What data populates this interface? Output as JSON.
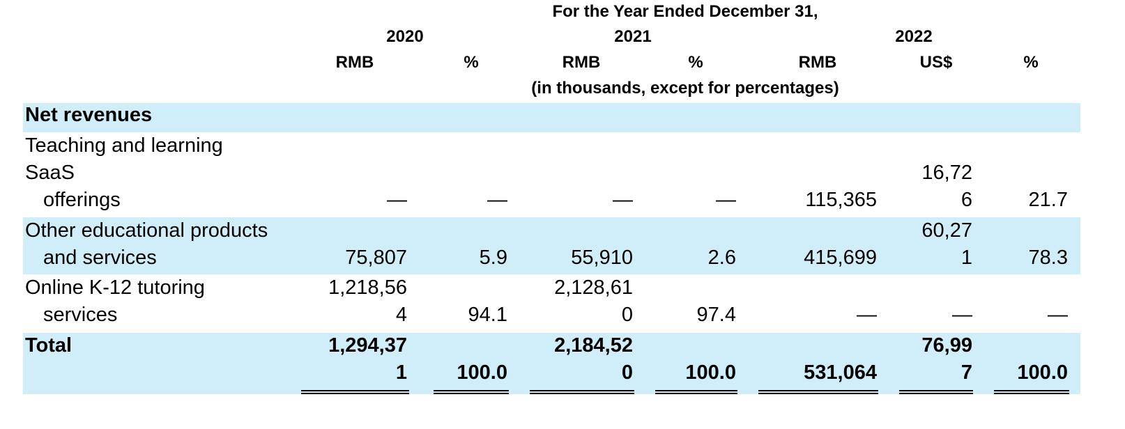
{
  "header": {
    "period": "For the Year Ended December 31,",
    "years": [
      "2020",
      "2021",
      "2022"
    ],
    "currencies": [
      "RMB",
      "%",
      "RMB",
      "%",
      "RMB",
      "US$",
      "%"
    ],
    "units_note": "(in thousands, except for percentages)"
  },
  "section_title": "Net revenues",
  "rows": [
    {
      "label": [
        "Teaching and learning",
        "SaaS",
        "offerings"
      ],
      "values": [
        [
          "",
          "—"
        ],
        [
          "",
          "—"
        ],
        [
          "",
          "—"
        ],
        [
          "",
          "—"
        ],
        [
          "",
          "115,365"
        ],
        [
          "16,72",
          "6"
        ],
        [
          "",
          "21.7"
        ]
      ]
    },
    {
      "label": [
        "Other educational products",
        "and services"
      ],
      "values": [
        [
          "",
          "75,807"
        ],
        [
          "",
          "5.9"
        ],
        [
          "",
          "55,910"
        ],
        [
          "",
          "2.6"
        ],
        [
          "",
          "415,699"
        ],
        [
          "60,27",
          "1"
        ],
        [
          "",
          "78.3"
        ]
      ]
    },
    {
      "label": [
        "Online K-12 tutoring",
        "services"
      ],
      "values": [
        [
          "1,218,56",
          "4"
        ],
        [
          "",
          "94.1"
        ],
        [
          "2,128,61",
          "0"
        ],
        [
          "",
          "97.4"
        ],
        [
          "",
          "—"
        ],
        [
          "",
          "—"
        ],
        [
          "",
          "—"
        ]
      ]
    },
    {
      "label": [
        "Total"
      ],
      "values": [
        [
          "1,294,37",
          "1"
        ],
        [
          "",
          "100.0"
        ],
        [
          "2,184,52",
          "0"
        ],
        [
          "",
          "100.0"
        ],
        [
          "",
          "531,064"
        ],
        [
          "76,99",
          "7"
        ],
        [
          "",
          "100.0"
        ]
      ]
    }
  ]
}
